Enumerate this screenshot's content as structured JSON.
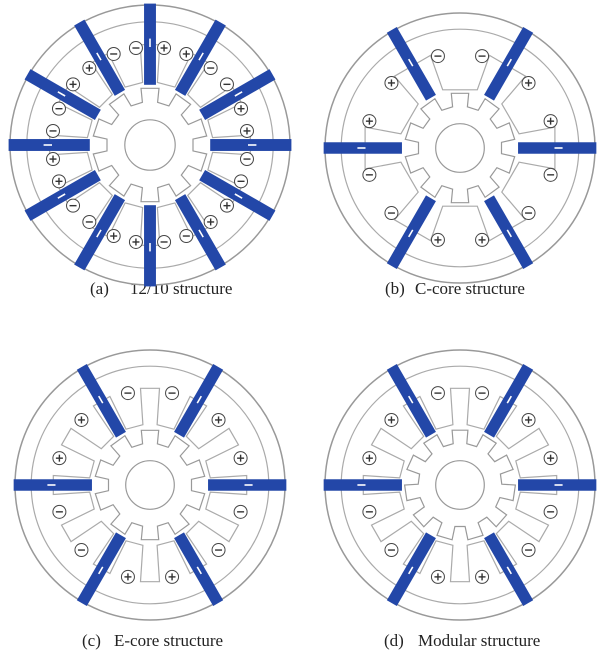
{
  "panels": [
    {
      "label": "(a)",
      "caption": "12/10 structure"
    },
    {
      "label": "(b)",
      "caption": "C-core structure"
    },
    {
      "label": "(c)",
      "caption": "E-core structure"
    },
    {
      "label": "(d)",
      "caption": "Modular structure"
    }
  ]
}
